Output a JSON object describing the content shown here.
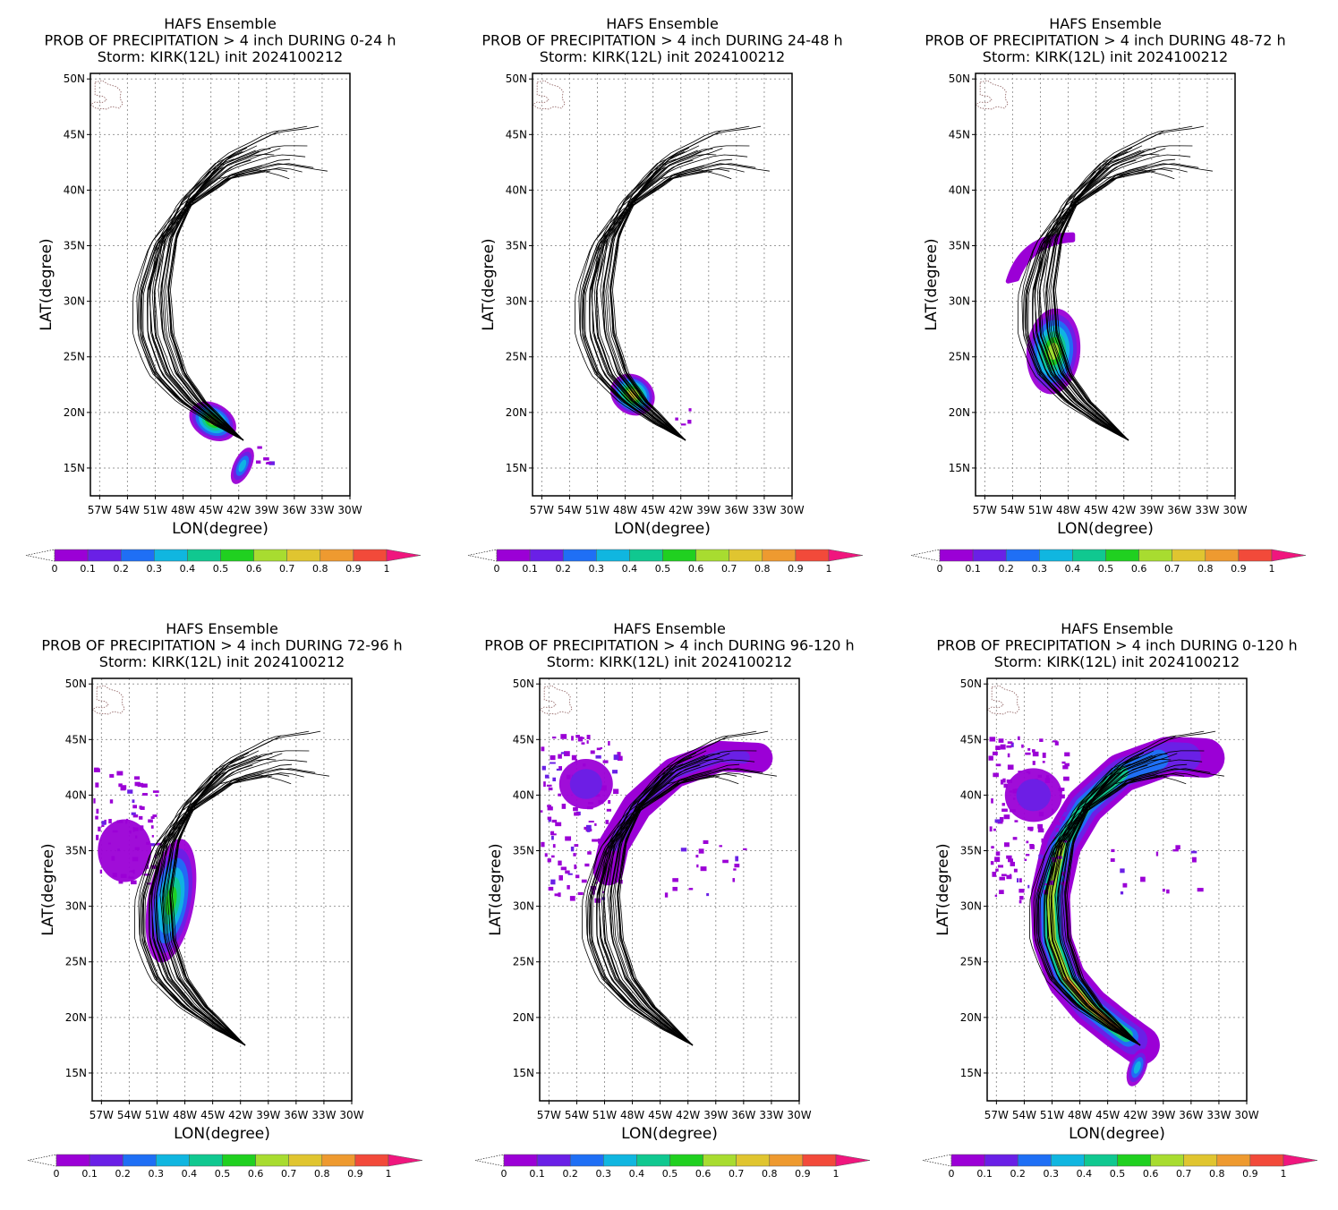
{
  "panels": [
    {
      "id": "p1",
      "titles": [
        "HAFS Ensemble",
        "PROB OF PRECIPITATION > 4 inch DURING  0-24 h",
        "Storm: KIRK(12L) init 2024100212"
      ]
    },
    {
      "id": "p2",
      "titles": [
        "HAFS Ensemble",
        "PROB OF PRECIPITATION > 4 inch DURING 24-48 h",
        "Storm: KIRK(12L) init 2024100212"
      ]
    },
    {
      "id": "p3",
      "titles": [
        "HAFS Ensemble",
        "PROB OF PRECIPITATION > 4 inch DURING 48-72 h",
        "Storm: KIRK(12L) init 2024100212"
      ]
    },
    {
      "id": "p4",
      "titles": [
        "HAFS Ensemble",
        "PROB OF PRECIPITATION > 4 inch DURING 72-96 h",
        "Storm: KIRK(12L) init 2024100212"
      ]
    },
    {
      "id": "p5",
      "titles": [
        "HAFS Ensemble",
        "PROB OF PRECIPITATION > 4 inch DURING 96-120 h",
        "Storm: KIRK(12L) init 2024100212"
      ]
    },
    {
      "id": "p6",
      "titles": [
        "HAFS Ensemble",
        "PROB OF PRECIPITATION > 4 inch DURING 0-120 h",
        "Storm: KIRK(12L) init 2024100212"
      ]
    }
  ],
  "axes": {
    "xlabel": "LON(degree)",
    "ylabel": "LAT(degree)",
    "lon_ticks": [
      "57W",
      "54W",
      "51W",
      "48W",
      "45W",
      "42W",
      "39W",
      "36W",
      "33W",
      "30W"
    ],
    "lat_ticks": [
      "15N",
      "20N",
      "25N",
      "30N",
      "35N",
      "40N",
      "45N",
      "50N"
    ],
    "lon_range": [
      -58,
      -30
    ],
    "lat_range": [
      12.5,
      50.5
    ]
  },
  "colorbar": {
    "labels": [
      "0",
      "0.1",
      "0.2",
      "0.3",
      "0.4",
      "0.5",
      "0.6",
      "0.7",
      "0.8",
      "0.9",
      "1"
    ],
    "colors": [
      "#9b00d6",
      "#6a20e6",
      "#1f6ff5",
      "#10b6e0",
      "#10c890",
      "#20d020",
      "#a8dc30",
      "#e0c530",
      "#ee9a30",
      "#f24a3a",
      "#f0167e"
    ]
  },
  "chart_data": {
    "type": "map",
    "mean_track_lonlat": [
      [
        -41.5,
        17.5
      ],
      [
        -44,
        19
      ],
      [
        -47,
        21
      ],
      [
        -49.5,
        23.5
      ],
      [
        -51,
        27
      ],
      [
        -51.2,
        31
      ],
      [
        -50,
        35.5
      ],
      [
        -47.5,
        39
      ],
      [
        -43.5,
        42
      ],
      [
        -38.5,
        43.5
      ],
      [
        -33.5,
        43.3
      ]
    ],
    "members": 30
  }
}
